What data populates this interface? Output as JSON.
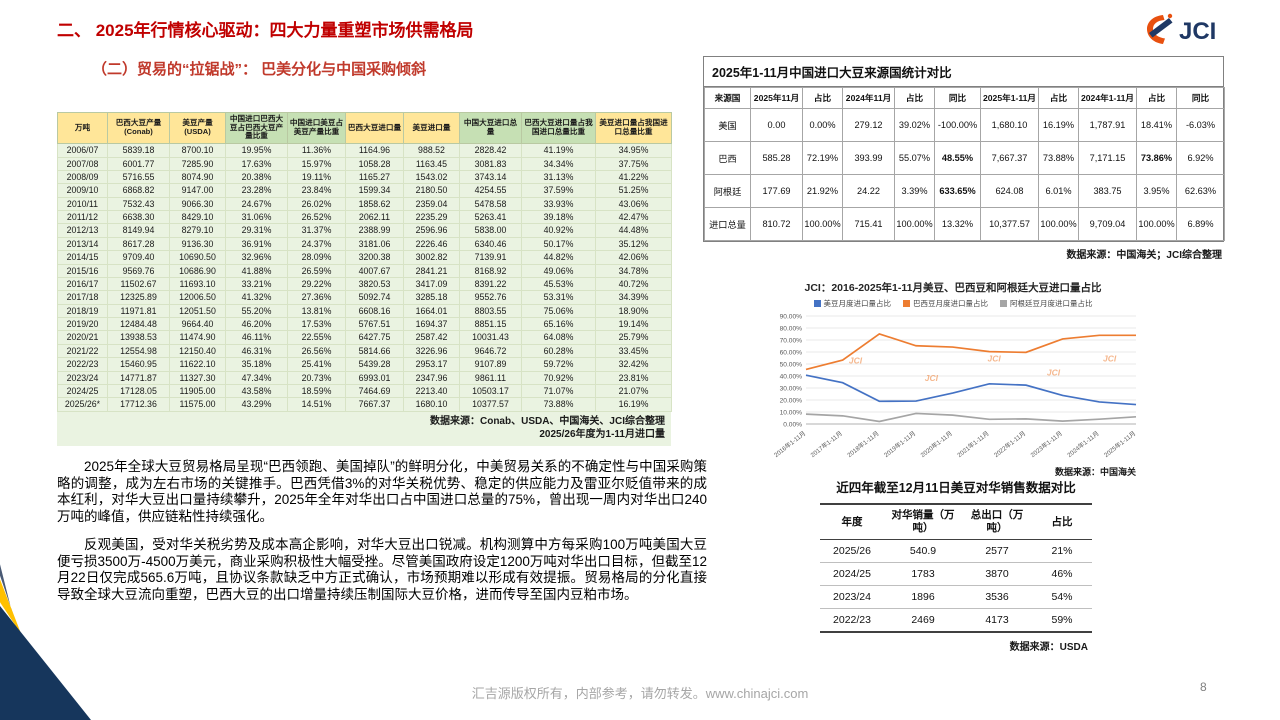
{
  "page": {
    "title": "二、 2025年行情核心驱动：四大力量重塑市场供需格局",
    "subtitle": "（二）贸易的“拉锯战”： 巴美分化与中国采购倾斜",
    "footer": "汇吉源版权所有，内部参考，请勿转发。www.chinajci.com",
    "page_number": "8",
    "logo_text": "JCI",
    "accent_red": "#C00000",
    "corner_navy": "#16365C",
    "corner_yellow": "#FFC000"
  },
  "main_table": {
    "headers": [
      "万吨",
      "巴西大豆产量(Conab)",
      "美豆产量(USDA)",
      "中国进口巴西大豆占巴西大豆产量比重",
      "中国进口美豆占美豆产量比重",
      "巴西大豆进口量",
      "美豆进口量",
      "中国大豆进口总量",
      "巴西大豆进口量占我国进口总量比重",
      "美豆进口量占我国进口总量比重"
    ],
    "rows": [
      [
        "2006/07",
        "5839.18",
        "8700.10",
        "19.95%",
        "11.36%",
        "1164.96",
        "988.52",
        "2828.42",
        "41.19%",
        "34.95%"
      ],
      [
        "2007/08",
        "6001.77",
        "7285.90",
        "17.63%",
        "15.97%",
        "1058.28",
        "1163.45",
        "3081.83",
        "34.34%",
        "37.75%"
      ],
      [
        "2008/09",
        "5716.55",
        "8074.90",
        "20.38%",
        "19.11%",
        "1165.27",
        "1543.02",
        "3743.14",
        "31.13%",
        "41.22%"
      ],
      [
        "2009/10",
        "6868.82",
        "9147.00",
        "23.28%",
        "23.84%",
        "1599.34",
        "2180.50",
        "4254.55",
        "37.59%",
        "51.25%"
      ],
      [
        "2010/11",
        "7532.43",
        "9066.30",
        "24.67%",
        "26.02%",
        "1858.62",
        "2359.04",
        "5478.58",
        "33.93%",
        "43.06%"
      ],
      [
        "2011/12",
        "6638.30",
        "8429.10",
        "31.06%",
        "26.52%",
        "2062.11",
        "2235.29",
        "5263.41",
        "39.18%",
        "42.47%"
      ],
      [
        "2012/13",
        "8149.94",
        "8279.10",
        "29.31%",
        "31.37%",
        "2388.99",
        "2596.96",
        "5838.00",
        "40.92%",
        "44.48%"
      ],
      [
        "2013/14",
        "8617.28",
        "9136.30",
        "36.91%",
        "24.37%",
        "3181.06",
        "2226.46",
        "6340.46",
        "50.17%",
        "35.12%"
      ],
      [
        "2014/15",
        "9709.40",
        "10690.50",
        "32.96%",
        "28.09%",
        "3200.38",
        "3002.82",
        "7139.91",
        "44.82%",
        "42.06%"
      ],
      [
        "2015/16",
        "9569.76",
        "10686.90",
        "41.88%",
        "26.59%",
        "4007.67",
        "2841.21",
        "8168.92",
        "49.06%",
        "34.78%"
      ],
      [
        "2016/17",
        "11502.67",
        "11693.10",
        "33.21%",
        "29.22%",
        "3820.53",
        "3417.09",
        "8391.22",
        "45.53%",
        "40.72%"
      ],
      [
        "2017/18",
        "12325.89",
        "12006.50",
        "41.32%",
        "27.36%",
        "5092.74",
        "3285.18",
        "9552.76",
        "53.31%",
        "34.39%"
      ],
      [
        "2018/19",
        "11971.81",
        "12051.50",
        "55.20%",
        "13.81%",
        "6608.16",
        "1664.01",
        "8803.55",
        "75.06%",
        "18.90%"
      ],
      [
        "2019/20",
        "12484.48",
        "9664.40",
        "46.20%",
        "17.53%",
        "5767.51",
        "1694.37",
        "8851.15",
        "65.16%",
        "19.14%"
      ],
      [
        "2020/21",
        "13938.53",
        "11474.90",
        "46.11%",
        "22.55%",
        "6427.75",
        "2587.42",
        "10031.43",
        "64.08%",
        "25.79%"
      ],
      [
        "2021/22",
        "12554.98",
        "12150.40",
        "46.31%",
        "26.56%",
        "5814.66",
        "3226.96",
        "9646.72",
        "60.28%",
        "33.45%"
      ],
      [
        "2022/23",
        "15460.95",
        "11622.10",
        "35.18%",
        "25.41%",
        "5439.28",
        "2953.17",
        "9107.89",
        "59.72%",
        "32.42%"
      ],
      [
        "2023/24",
        "14771.87",
        "11327.30",
        "47.34%",
        "20.73%",
        "6993.01",
        "2347.96",
        "9861.11",
        "70.92%",
        "23.81%"
      ],
      [
        "2024/25",
        "17128.05",
        "11905.00",
        "43.58%",
        "18.59%",
        "7464.69",
        "2213.40",
        "10503.17",
        "71.07%",
        "21.07%"
      ],
      [
        "2025/26*",
        "17712.36",
        "11575.00",
        "43.29%",
        "14.51%",
        "7667.37",
        "1680.10",
        "10377.57",
        "73.88%",
        "16.19%"
      ]
    ],
    "source": "数据来源：Conab、USDA、中国海关、JCI综合整理",
    "note": "2025/26年度为1-11月进口量"
  },
  "stats_table": {
    "title": "2025年1-11月中国进口大豆来源国统计对比",
    "headers": [
      "来源国",
      "2025年11月",
      "占比",
      "2024年11月",
      "占比",
      "同比",
      "2025年1-11月",
      "占比",
      "2024年1-11月",
      "占比",
      "同比"
    ],
    "rows": [
      [
        "美国",
        "0.00",
        {
          "v": "0.00%",
          "cls": "c-cyan"
        },
        "279.12",
        {
          "v": "39.02%",
          "cls": "c-cyan"
        },
        "-100.00%",
        "1,680.10",
        {
          "v": "16.19%",
          "cls": "c-cyan"
        },
        "1,787.91",
        {
          "v": "18.41%",
          "cls": "c-cyan"
        },
        "-6.03%"
      ],
      [
        "巴西",
        "585.28",
        {
          "v": "72.19%",
          "cls": "c-cyan"
        },
        "393.99",
        {
          "v": "55.07%",
          "cls": "c-cyan"
        },
        {
          "v": "48.55%",
          "cls": "c-red"
        },
        "7,667.37",
        {
          "v": "73.88%",
          "cls": "c-cyan"
        },
        "7,171.15",
        {
          "v": "73.86%",
          "cls": "c-red"
        },
        "6.92%"
      ],
      [
        "阿根廷",
        "177.69",
        {
          "v": "21.92%",
          "cls": "c-cyan"
        },
        "24.22",
        {
          "v": "3.39%",
          "cls": "c-cyan"
        },
        {
          "v": "633.65%",
          "cls": "c-red"
        },
        "624.08",
        {
          "v": "6.01%",
          "cls": "c-cyan"
        },
        "383.75",
        {
          "v": "3.95%",
          "cls": "c-cyan"
        },
        "62.63%"
      ],
      [
        "进口总量",
        "810.72",
        {
          "v": "100.00%",
          "cls": "c-cyan"
        },
        "715.41",
        {
          "v": "100.00%",
          "cls": "c-cyan"
        },
        "13.32%",
        "10,377.57",
        {
          "v": "100.00%",
          "cls": "c-cyan"
        },
        "9,709.04",
        {
          "v": "100.00%",
          "cls": "c-cyan"
        },
        "6.89%"
      ]
    ],
    "source": "数据来源：中国海关；JCI综合整理"
  },
  "chart_data": {
    "type": "line",
    "title": "JCI：2016-2025年1-11月美豆、巴西豆和阿根廷大豆进口量占比",
    "categories": [
      "2016年1-11月",
      "2017年1-11月",
      "2018年1-11月",
      "2019年1-11月",
      "2020年1-11月",
      "2021年1-11月",
      "2022年1-11月",
      "2023年1-11月",
      "2024年1-11月",
      "2025年1-11月"
    ],
    "series": [
      {
        "name": "美豆月度进口量占比",
        "color": "#4472C4",
        "values": [
          40.7,
          34.4,
          18.9,
          19.1,
          25.8,
          33.5,
          32.4,
          23.8,
          18.4,
          16.2
        ]
      },
      {
        "name": "巴西豆月度进口量占比",
        "color": "#ED7D31",
        "values": [
          45.5,
          53.3,
          75.1,
          65.2,
          64.1,
          60.3,
          59.7,
          70.9,
          73.9,
          73.9
        ]
      },
      {
        "name": "阿根廷豆月度进口量占比",
        "color": "#A5A5A5",
        "values": [
          8.2,
          6.8,
          2.1,
          8.8,
          7.4,
          3.9,
          4.3,
          2.4,
          4.0,
          6.0
        ]
      }
    ],
    "xlabel": "",
    "ylabel": "",
    "ylim": [
      0,
      90
    ],
    "ytick_step": 10,
    "grid": true,
    "legend_position": "top",
    "watermark": "JCI",
    "source": "数据来源：中国海关"
  },
  "sales_table": {
    "title": "近四年截至12月11日美豆对华销售数据对比",
    "headers": [
      "年度",
      "对华销量（万吨）",
      "总出口（万吨）",
      "占比"
    ],
    "rows": [
      [
        "2025/26",
        "540.9",
        "2577",
        "21%"
      ],
      [
        "2024/25",
        "1783",
        "3870",
        "46%"
      ],
      [
        "2023/24",
        "1896",
        "3536",
        "54%"
      ],
      [
        "2022/23",
        "2469",
        "4173",
        "59%"
      ]
    ],
    "source": "数据来源：USDA"
  },
  "paragraphs": [
    "2025年全球大豆贸易格局呈现“巴西领跑、美国掉队”的鲜明分化，中美贸易关系的不确定性与中国采购策略的调整，成为左右市场的关键推手。巴西凭借3%的对华关税优势、稳定的供应能力及雷亚尔贬值带来的成本红利，对华大豆出口量持续攀升，2025年全年对华出口占中国进口总量的75%，曾出现一周内对华出口240万吨的峰值，供应链粘性持续强化。",
    "反观美国，受对华关税劣势及成本高企影响，对华大豆出口锐减。机构测算中方每采购100万吨美国大豆便亏损3500万-4500万美元，商业采购积极性大幅受挫。尽管美国政府设定1200万吨对华出口目标，但截至12月22日仅完成565.6万吨，且协议条款缺乏中方正式确认，市场预期难以形成有效提振。贸易格局的分化直接导致全球大豆流向重塑，巴西大豆的出口增量持续压制国际大豆价格，进而传导至国内豆粕市场。"
  ]
}
